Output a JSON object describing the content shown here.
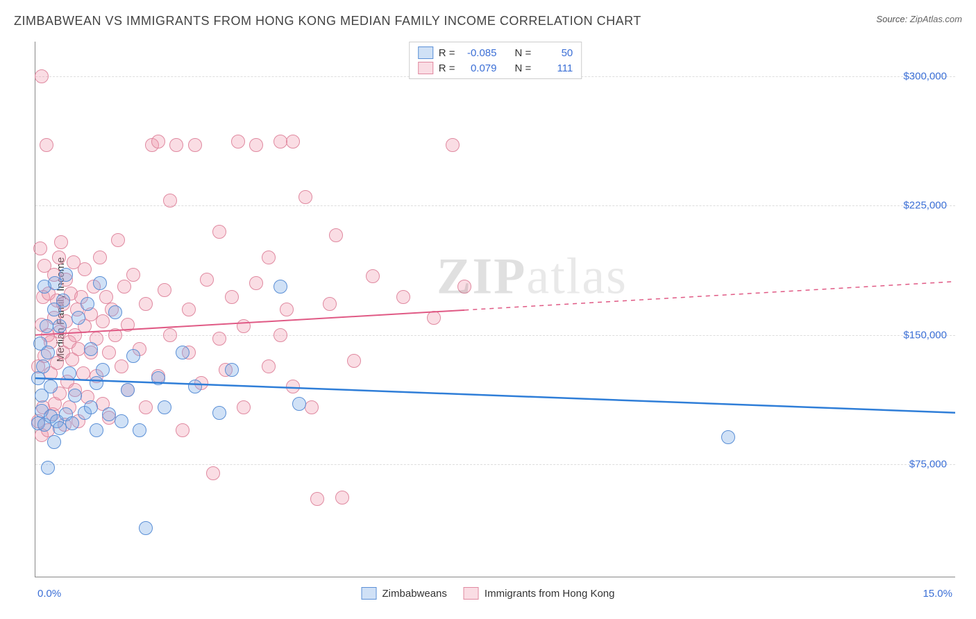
{
  "title": "ZIMBABWEAN VS IMMIGRANTS FROM HONG KONG MEDIAN FAMILY INCOME CORRELATION CHART",
  "source_label": "Source:",
  "source_value": "ZipAtlas.com",
  "watermark": {
    "bold": "ZIP",
    "rest": "atlas"
  },
  "y_axis_label": "Median Family Income",
  "x_axis": {
    "min_label": "0.0%",
    "max_label": "15.0%",
    "min": 0.0,
    "max": 15.0
  },
  "y_axis": {
    "min": 10000,
    "max": 320000,
    "ticks": [
      75000,
      150000,
      225000,
      300000
    ],
    "tick_labels": [
      "$75,000",
      "$150,000",
      "$225,000",
      "$300,000"
    ]
  },
  "grid_color": "#dddddd",
  "background_color": "#ffffff",
  "axis_color": "#888888",
  "tick_label_color": "#3b6fd6",
  "series": [
    {
      "name": "Zimbabweans",
      "key": "zimbabweans",
      "fill": "rgba(120,170,230,0.35)",
      "stroke": "#5a8fd6",
      "trend_color": "#2f7ed8",
      "trend_width": 2.5,
      "R": "-0.085",
      "N": "50",
      "marker_radius": 10,
      "trend": {
        "y_at_xmin": 125000,
        "y_at_xmax": 105000,
        "solid_until_x": 15.0
      },
      "points": [
        [
          0.05,
          125000
        ],
        [
          0.05,
          99000
        ],
        [
          0.08,
          145000
        ],
        [
          0.1,
          115000
        ],
        [
          0.1,
          106000
        ],
        [
          0.12,
          132000
        ],
        [
          0.15,
          178000
        ],
        [
          0.15,
          98000
        ],
        [
          0.18,
          155000
        ],
        [
          0.2,
          73000
        ],
        [
          0.2,
          140000
        ],
        [
          0.25,
          103000
        ],
        [
          0.25,
          120000
        ],
        [
          0.3,
          165000
        ],
        [
          0.3,
          88000
        ],
        [
          0.32,
          180000
        ],
        [
          0.35,
          100000
        ],
        [
          0.4,
          155000
        ],
        [
          0.4,
          96000
        ],
        [
          0.45,
          170000
        ],
        [
          0.5,
          185000
        ],
        [
          0.5,
          104000
        ],
        [
          0.55,
          128000
        ],
        [
          0.6,
          99000
        ],
        [
          0.65,
          115000
        ],
        [
          0.7,
          160000
        ],
        [
          0.8,
          105000
        ],
        [
          0.85,
          168000
        ],
        [
          0.9,
          108000
        ],
        [
          0.9,
          142000
        ],
        [
          1.0,
          122000
        ],
        [
          1.0,
          95000
        ],
        [
          1.05,
          180000
        ],
        [
          1.1,
          130000
        ],
        [
          1.2,
          104000
        ],
        [
          1.3,
          163000
        ],
        [
          1.4,
          100000
        ],
        [
          1.5,
          118000
        ],
        [
          1.6,
          138000
        ],
        [
          1.7,
          95000
        ],
        [
          1.8,
          38000
        ],
        [
          2.0,
          125000
        ],
        [
          2.1,
          108000
        ],
        [
          2.4,
          140000
        ],
        [
          2.6,
          120000
        ],
        [
          3.0,
          105000
        ],
        [
          3.2,
          130000
        ],
        [
          4.0,
          178000
        ],
        [
          4.3,
          110000
        ],
        [
          11.3,
          91000
        ]
      ]
    },
    {
      "name": "Immigrants from Hong Kong",
      "key": "hongkong",
      "fill": "rgba(240,150,170,0.32)",
      "stroke": "#e089a0",
      "trend_color": "#e05a85",
      "trend_width": 2,
      "R": "0.079",
      "N": "111",
      "marker_radius": 10,
      "trend": {
        "y_at_xmin": 150000,
        "y_at_xmax": 181000,
        "solid_until_x": 7.0
      },
      "points": [
        [
          0.05,
          100000
        ],
        [
          0.05,
          132000
        ],
        [
          0.08,
          200000
        ],
        [
          0.1,
          300000
        ],
        [
          0.1,
          156000
        ],
        [
          0.1,
          92000
        ],
        [
          0.12,
          172000
        ],
        [
          0.12,
          108000
        ],
        [
          0.15,
          138000
        ],
        [
          0.15,
          190000
        ],
        [
          0.18,
          260000
        ],
        [
          0.2,
          150000
        ],
        [
          0.2,
          95000
        ],
        [
          0.22,
          174000
        ],
        [
          0.25,
          128000
        ],
        [
          0.25,
          146000
        ],
        [
          0.28,
          104000
        ],
        [
          0.3,
          160000
        ],
        [
          0.3,
          185000
        ],
        [
          0.32,
          110000
        ],
        [
          0.35,
          170000
        ],
        [
          0.35,
          134000
        ],
        [
          0.38,
          195000
        ],
        [
          0.4,
          152000
        ],
        [
          0.4,
          116000
        ],
        [
          0.42,
          204000
        ],
        [
          0.45,
          140000
        ],
        [
          0.45,
          168000
        ],
        [
          0.48,
          98000
        ],
        [
          0.5,
          158000
        ],
        [
          0.5,
          182000
        ],
        [
          0.52,
          123000
        ],
        [
          0.55,
          146000
        ],
        [
          0.55,
          108000
        ],
        [
          0.58,
          174000
        ],
        [
          0.6,
          136000
        ],
        [
          0.62,
          192000
        ],
        [
          0.65,
          150000
        ],
        [
          0.65,
          118000
        ],
        [
          0.68,
          165000
        ],
        [
          0.7,
          142000
        ],
        [
          0.7,
          100000
        ],
        [
          0.75,
          172000
        ],
        [
          0.78,
          128000
        ],
        [
          0.8,
          155000
        ],
        [
          0.8,
          188000
        ],
        [
          0.85,
          114000
        ],
        [
          0.9,
          162000
        ],
        [
          0.9,
          140000
        ],
        [
          0.95,
          178000
        ],
        [
          1.0,
          148000
        ],
        [
          1.0,
          126000
        ],
        [
          1.05,
          195000
        ],
        [
          1.1,
          158000
        ],
        [
          1.1,
          110000
        ],
        [
          1.15,
          172000
        ],
        [
          1.2,
          140000
        ],
        [
          1.2,
          102000
        ],
        [
          1.25,
          165000
        ],
        [
          1.3,
          150000
        ],
        [
          1.35,
          205000
        ],
        [
          1.4,
          132000
        ],
        [
          1.45,
          178000
        ],
        [
          1.5,
          118000
        ],
        [
          1.5,
          156000
        ],
        [
          1.6,
          185000
        ],
        [
          1.7,
          142000
        ],
        [
          1.8,
          168000
        ],
        [
          1.8,
          108000
        ],
        [
          1.9,
          260000
        ],
        [
          2.0,
          262000
        ],
        [
          2.0,
          126000
        ],
        [
          2.1,
          176000
        ],
        [
          2.2,
          150000
        ],
        [
          2.2,
          228000
        ],
        [
          2.3,
          260000
        ],
        [
          2.4,
          95000
        ],
        [
          2.5,
          165000
        ],
        [
          2.5,
          140000
        ],
        [
          2.6,
          260000
        ],
        [
          2.7,
          122000
        ],
        [
          2.8,
          182000
        ],
        [
          2.9,
          70000
        ],
        [
          3.0,
          210000
        ],
        [
          3.0,
          148000
        ],
        [
          3.1,
          130000
        ],
        [
          3.2,
          172000
        ],
        [
          3.3,
          262000
        ],
        [
          3.4,
          155000
        ],
        [
          3.4,
          108000
        ],
        [
          3.6,
          180000
        ],
        [
          3.6,
          260000
        ],
        [
          3.8,
          132000
        ],
        [
          3.8,
          195000
        ],
        [
          4.0,
          262000
        ],
        [
          4.0,
          150000
        ],
        [
          4.1,
          165000
        ],
        [
          4.2,
          120000
        ],
        [
          4.2,
          262000
        ],
        [
          4.4,
          230000
        ],
        [
          4.5,
          108000
        ],
        [
          4.6,
          55000
        ],
        [
          4.8,
          168000
        ],
        [
          4.9,
          208000
        ],
        [
          5.0,
          56000
        ],
        [
          5.2,
          135000
        ],
        [
          5.5,
          184000
        ],
        [
          6.0,
          172000
        ],
        [
          6.5,
          160000
        ],
        [
          6.8,
          260000
        ],
        [
          7.0,
          178000
        ]
      ]
    }
  ],
  "legend_top": {
    "r_label": "R =",
    "n_label": "N ="
  },
  "legend_bottom": {
    "items": [
      "Zimbabweans",
      "Immigrants from Hong Kong"
    ]
  }
}
